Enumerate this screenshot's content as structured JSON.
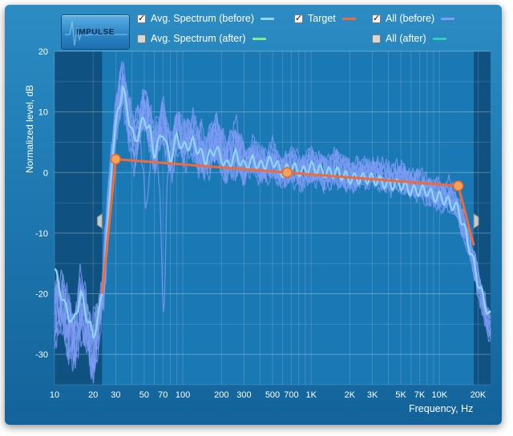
{
  "toolbar": {
    "impulse_label": "IMPULSE"
  },
  "legend": {
    "avg_before": {
      "label": "Avg. Spectrum (before)",
      "checked": true,
      "color": "#8fd6f2"
    },
    "target": {
      "label": "Target",
      "checked": true,
      "color": "#f06a3c"
    },
    "all_before": {
      "label": "All (before)",
      "checked": true,
      "color": "#7e9cf6"
    },
    "avg_after": {
      "label": "Avg. Spectrum (after)",
      "checked": false,
      "color": "#7df08a"
    },
    "all_after": {
      "label": "All (after)",
      "checked": false,
      "color": "#2fd1b6"
    },
    "check_mark": "✓"
  },
  "chart_data": {
    "type": "line",
    "xscale": "log",
    "xlim": [
      10,
      25000
    ],
    "ylim": [
      -35,
      20
    ],
    "ylabel": "Normalized level, dB",
    "xlabel": "Frequency, Hz",
    "xticks": [
      {
        "v": 10,
        "label": "10"
      },
      {
        "v": 20,
        "label": "20"
      },
      {
        "v": 30,
        "label": "30"
      },
      {
        "v": 50,
        "label": "50"
      },
      {
        "v": 70,
        "label": "70"
      },
      {
        "v": 100,
        "label": "100"
      },
      {
        "v": 200,
        "label": "200"
      },
      {
        "v": 300,
        "label": "300"
      },
      {
        "v": 500,
        "label": "500"
      },
      {
        "v": 700,
        "label": "700"
      },
      {
        "v": 1000,
        "label": "1K"
      },
      {
        "v": 2000,
        "label": "2K"
      },
      {
        "v": 3000,
        "label": "3K"
      },
      {
        "v": 5000,
        "label": "5K"
      },
      {
        "v": 7000,
        "label": "7K"
      },
      {
        "v": 10000,
        "label": "10K"
      },
      {
        "v": 20000,
        "label": "20K"
      }
    ],
    "yticks": [
      20,
      10,
      0,
      -10,
      -20,
      -30
    ],
    "shaded_ranges": [
      [
        10,
        23.5
      ],
      [
        18500,
        25000
      ]
    ],
    "range_handles": [
      23.5,
      18500
    ],
    "target": {
      "name": "Target",
      "points": [
        [
          23.5,
          -20
        ],
        [
          30,
          2.2
        ],
        [
          650,
          0
        ],
        [
          14000,
          -2.2
        ],
        [
          18500,
          -12
        ]
      ],
      "control_points": [
        [
          30,
          2.2
        ],
        [
          650,
          0
        ],
        [
          14000,
          -2.2
        ]
      ]
    },
    "all_before_anchor": {
      "x": [
        10,
        12,
        14,
        16,
        18,
        20,
        22,
        24,
        26,
        28,
        31,
        34,
        38,
        42,
        46,
        50,
        55,
        60,
        65,
        70,
        75,
        80,
        90,
        100,
        120,
        150,
        180,
        220,
        260,
        300,
        350,
        400,
        500,
        600,
        700,
        850,
        1000,
        1300,
        1600,
        2000,
        2500,
        3000,
        4000,
        5000,
        6000,
        7000,
        8000,
        9000,
        10000,
        12000,
        14000,
        16000,
        18000,
        20000,
        22000,
        25000
      ],
      "y": [
        -20,
        -22,
        -28,
        -22,
        -26,
        -30,
        -26,
        -18,
        -8,
        2,
        10,
        14,
        8,
        5,
        8,
        11,
        8,
        4,
        6,
        8,
        5,
        2,
        7,
        5,
        6,
        3,
        6,
        2,
        4,
        1,
        3,
        1,
        2,
        0,
        1,
        0,
        1,
        0,
        1,
        -1,
        0,
        0,
        -1,
        -1,
        -2,
        -2,
        -3,
        -3,
        -4,
        -4,
        -6,
        -10,
        -14,
        -18,
        -22,
        -26
      ]
    },
    "avg_before": {
      "name": "Avg. Spectrum (before)",
      "x": [
        10,
        12,
        14,
        16,
        18,
        20,
        22,
        24,
        26,
        28,
        31,
        34,
        38,
        42,
        46,
        50,
        55,
        60,
        65,
        70,
        75,
        80,
        90,
        100,
        120,
        150,
        180,
        220,
        260,
        300,
        350,
        400,
        500,
        600,
        700,
        850,
        1000,
        1300,
        1600,
        2000,
        2500,
        3000,
        4000,
        5000,
        6000,
        7000,
        8000,
        9000,
        10000,
        12000,
        14000,
        16000,
        18000,
        20000,
        22000,
        25000
      ],
      "y": [
        -16,
        -22,
        -25,
        -20,
        -24,
        -27,
        -24,
        -18,
        -9,
        2,
        10,
        14,
        9,
        5,
        7,
        9,
        7,
        3,
        5,
        7,
        4,
        2,
        6,
        4,
        5,
        2,
        4,
        1,
        3,
        1,
        2,
        1,
        2,
        0,
        1,
        0,
        1,
        0,
        0,
        -1,
        -1,
        -1,
        -2,
        -2,
        -3,
        -3,
        -3,
        -4,
        -4,
        -5,
        -6,
        -10,
        -14,
        -18,
        -21,
        -24
      ]
    }
  },
  "axis": {
    "ylabel": "Normalized level, dB",
    "xlabel": "Frequency, Hz"
  }
}
